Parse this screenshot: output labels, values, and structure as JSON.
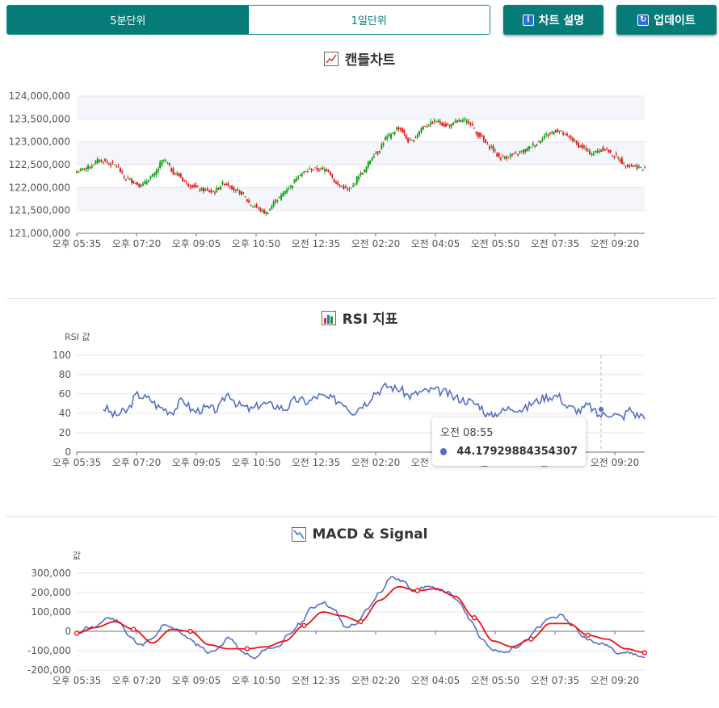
{
  "toolbar": {
    "tabs": [
      {
        "label": "5분단위",
        "active": true
      },
      {
        "label": "1일단위",
        "active": false
      }
    ],
    "chart_info_label": "차트 설명",
    "update_label": "업데이트",
    "chart_info_icon": "info-icon",
    "update_icon": "refresh-icon"
  },
  "sections": {
    "candle_title": "캔들차트",
    "rsi_title": "RSI 지표",
    "macd_title": "MACD & Signal"
  },
  "colors": {
    "accent": "#077b78",
    "up": "#14a014",
    "down": "#e01b1b",
    "rsi_line": "#5470c6",
    "macd_line": "#5470c6",
    "signal_line": "#ee1111"
  },
  "tooltip": {
    "time": "오전 08:55",
    "value": "44.17929884354307"
  },
  "chart_data": [
    {
      "type": "candlestick",
      "title": "캔들차트",
      "x_ticks": [
        "오후 05:35",
        "오후 07:20",
        "오후 09:05",
        "오후 10:50",
        "오전 12:35",
        "오전 02:20",
        "오전 04:05",
        "오전 05:50",
        "오전 07:35",
        "오전 09:20"
      ],
      "y_ticks": [
        "124,000,000",
        "123,500,000",
        "123,000,000",
        "122,500,000",
        "122,000,000",
        "121,500,000",
        "121,000,000"
      ],
      "ylim": [
        121000000,
        124000000
      ],
      "close_anchors": [
        [
          0,
          122350000
        ],
        [
          6,
          122450000
        ],
        [
          12,
          122600000
        ],
        [
          20,
          122500000
        ],
        [
          26,
          122200000
        ],
        [
          34,
          122050000
        ],
        [
          40,
          122250000
        ],
        [
          46,
          122600000
        ],
        [
          52,
          122300000
        ],
        [
          60,
          122050000
        ],
        [
          66,
          121950000
        ],
        [
          72,
          121900000
        ],
        [
          78,
          122100000
        ],
        [
          86,
          121900000
        ],
        [
          93,
          121600000
        ],
        [
          100,
          121450000
        ],
        [
          106,
          121750000
        ],
        [
          112,
          122000000
        ],
        [
          118,
          122300000
        ],
        [
          124,
          122400000
        ],
        [
          132,
          122400000
        ],
        [
          138,
          122050000
        ],
        [
          144,
          121950000
        ],
        [
          150,
          122300000
        ],
        [
          158,
          122750000
        ],
        [
          164,
          123100000
        ],
        [
          170,
          123300000
        ],
        [
          176,
          123000000
        ],
        [
          184,
          123350000
        ],
        [
          190,
          123450000
        ],
        [
          196,
          123350000
        ],
        [
          202,
          123450000
        ],
        [
          207,
          123450000
        ],
        [
          212,
          123150000
        ],
        [
          218,
          122900000
        ],
        [
          224,
          122650000
        ],
        [
          230,
          122700000
        ],
        [
          236,
          122800000
        ],
        [
          242,
          122950000
        ],
        [
          248,
          123150000
        ],
        [
          254,
          123250000
        ],
        [
          260,
          123100000
        ],
        [
          266,
          122900000
        ],
        [
          272,
          122750000
        ],
        [
          278,
          122850000
        ],
        [
          284,
          122700000
        ],
        [
          290,
          122500000
        ],
        [
          296,
          122450000
        ],
        [
          300,
          122400000
        ]
      ],
      "count": 301
    },
    {
      "type": "line",
      "title": "RSI 지표",
      "ylabel": "RSI 값",
      "x_ticks": [
        "오후 05:35",
        "오후 07:20",
        "오후 09:05",
        "오후 10:50",
        "오전 12:35",
        "오전 02:20",
        "오전 04:05",
        "오전 05:50",
        "오전 07:35",
        "오전 09:20"
      ],
      "y_ticks": [
        "100",
        "80",
        "60",
        "40",
        "20",
        "0"
      ],
      "ylim": [
        0,
        100
      ],
      "series": [
        {
          "anchors": [
            [
              0,
              63
            ],
            [
              5,
              52
            ],
            [
              10,
              46
            ],
            [
              15,
              45
            ],
            [
              20,
              38
            ],
            [
              26,
              42
            ],
            [
              32,
              59
            ],
            [
              38,
              55
            ],
            [
              44,
              46
            ],
            [
              50,
              42
            ],
            [
              56,
              53
            ],
            [
              62,
              42
            ],
            [
              68,
              45
            ],
            [
              74,
              44
            ],
            [
              80,
              60
            ],
            [
              86,
              48
            ],
            [
              92,
              44
            ],
            [
              98,
              50
            ],
            [
              104,
              48
            ],
            [
              110,
              45
            ],
            [
              116,
              54
            ],
            [
              122,
              52
            ],
            [
              128,
              58
            ],
            [
              134,
              55
            ],
            [
              140,
              52
            ],
            [
              146,
              42
            ],
            [
              152,
              50
            ],
            [
              158,
              62
            ],
            [
              164,
              68
            ],
            [
              170,
              65
            ],
            [
              176,
              58
            ],
            [
              182,
              62
            ],
            [
              188,
              64
            ],
            [
              194,
              62
            ],
            [
              200,
              56
            ],
            [
              206,
              53
            ],
            [
              212,
              49
            ],
            [
              218,
              37
            ],
            [
              224,
              42
            ],
            [
              230,
              46
            ],
            [
              236,
              44
            ],
            [
              242,
              52
            ],
            [
              248,
              57
            ],
            [
              254,
              58
            ],
            [
              260,
              46
            ],
            [
              266,
              43
            ],
            [
              270,
              48
            ],
            [
              276,
              38
            ],
            [
              282,
              40
            ],
            [
              288,
              36
            ],
            [
              292,
              44
            ],
            [
              296,
              38
            ]
          ],
          "start_index": 14,
          "count": 301
        }
      ]
    },
    {
      "type": "line",
      "title": "MACD & Signal",
      "ylabel": "값",
      "x_ticks": [
        "오후 05:35",
        "오후 07:20",
        "오후 09:05",
        "오후 10:50",
        "오전 12:35",
        "오전 02:20",
        "오전 04:05",
        "오전 05:50",
        "오전 07:35",
        "오전 09:20"
      ],
      "y_ticks": [
        "300,000",
        "200,000",
        "100,000",
        "0",
        "-100,000",
        "-200,000"
      ],
      "ylim": [
        -200000,
        300000
      ],
      "series": [
        {
          "anchors": [
            [
              0,
              -20000
            ],
            [
              5,
              20000
            ],
            [
              10,
              20000
            ],
            [
              16,
              70000
            ],
            [
              22,
              55000
            ],
            [
              28,
              -30000
            ],
            [
              34,
              -70000
            ],
            [
              40,
              -40000
            ],
            [
              46,
              30000
            ],
            [
              52,
              15000
            ],
            [
              58,
              -30000
            ],
            [
              64,
              -70000
            ],
            [
              70,
              -110000
            ],
            [
              76,
              -80000
            ],
            [
              80,
              -30000
            ],
            [
              88,
              -110000
            ],
            [
              94,
              -140000
            ],
            [
              100,
              -90000
            ],
            [
              106,
              -80000
            ],
            [
              112,
              -20000
            ],
            [
              118,
              40000
            ],
            [
              124,
              120000
            ],
            [
              130,
              150000
            ],
            [
              136,
              110000
            ],
            [
              142,
              20000
            ],
            [
              148,
              40000
            ],
            [
              154,
              120000
            ],
            [
              160,
              200000
            ],
            [
              166,
              280000
            ],
            [
              172,
              260000
            ],
            [
              178,
              210000
            ],
            [
              184,
              230000
            ],
            [
              190,
              220000
            ],
            [
              196,
              200000
            ],
            [
              202,
              150000
            ],
            [
              208,
              60000
            ],
            [
              214,
              -40000
            ],
            [
              220,
              -100000
            ],
            [
              226,
              -110000
            ],
            [
              232,
              -80000
            ],
            [
              238,
              -40000
            ],
            [
              244,
              20000
            ],
            [
              250,
              70000
            ],
            [
              256,
              80000
            ],
            [
              262,
              30000
            ],
            [
              268,
              -30000
            ],
            [
              274,
              -60000
            ],
            [
              280,
              -70000
            ],
            [
              286,
              -110000
            ],
            [
              292,
              -110000
            ],
            [
              298,
              -130000
            ]
          ]
        },
        {
          "anchors": [
            [
              0,
              -10000
            ],
            [
              10,
              20000
            ],
            [
              20,
              50000
            ],
            [
              30,
              10000
            ],
            [
              40,
              -60000
            ],
            [
              50,
              10000
            ],
            [
              60,
              0
            ],
            [
              70,
              -70000
            ],
            [
              80,
              -90000
            ],
            [
              90,
              -90000
            ],
            [
              100,
              -80000
            ],
            [
              110,
              -50000
            ],
            [
              120,
              30000
            ],
            [
              130,
              100000
            ],
            [
              140,
              80000
            ],
            [
              150,
              50000
            ],
            [
              160,
              160000
            ],
            [
              170,
              230000
            ],
            [
              180,
              210000
            ],
            [
              190,
              220000
            ],
            [
              200,
              180000
            ],
            [
              210,
              70000
            ],
            [
              220,
              -50000
            ],
            [
              230,
              -80000
            ],
            [
              240,
              -40000
            ],
            [
              250,
              40000
            ],
            [
              260,
              40000
            ],
            [
              270,
              -20000
            ],
            [
              280,
              -40000
            ],
            [
              290,
              -90000
            ],
            [
              300,
              -110000
            ]
          ],
          "markers_every": 30
        }
      ],
      "count": 301
    }
  ]
}
